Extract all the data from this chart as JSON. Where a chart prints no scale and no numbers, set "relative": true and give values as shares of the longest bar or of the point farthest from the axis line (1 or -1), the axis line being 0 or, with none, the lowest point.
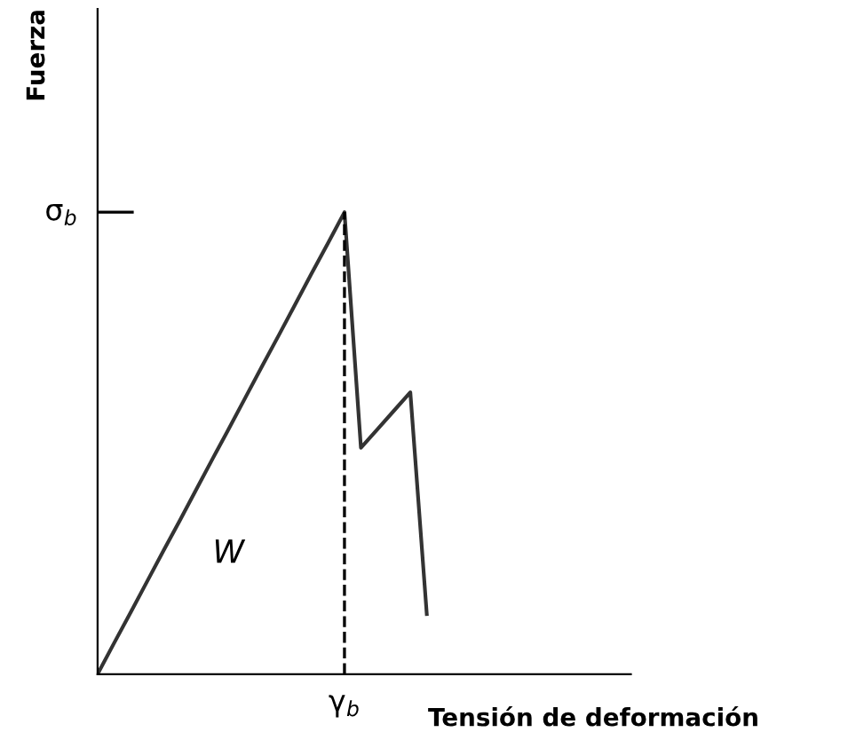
{
  "chart_data": {
    "type": "line",
    "relative": true,
    "xlabel": "Tensión de deformación",
    "ylabel": "Fuerza",
    "categories": [
      null,
      null,
      null,
      null,
      null,
      null,
      null,
      null,
      null,
      null,
      null,
      null,
      null,
      null,
      null,
      null,
      null,
      null,
      null,
      null,
      null
    ],
    "series": [
      {
        "color": "#333333",
        "values": [
          0,
          0.067,
          0.133,
          0.2,
          0.267,
          0.333,
          0.4,
          0.467,
          0.533,
          0.6,
          0.667,
          0.733,
          0.8,
          0.867,
          0.933,
          1,
          0.49,
          0.53,
          0.57,
          0.61,
          0.13
        ]
      }
    ],
    "annotations": [
      "W",
      "σ$_{b}$",
      "γ$_{b}$"
    ],
    "marker": "none",
    "line_style": "solid"
  }
}
